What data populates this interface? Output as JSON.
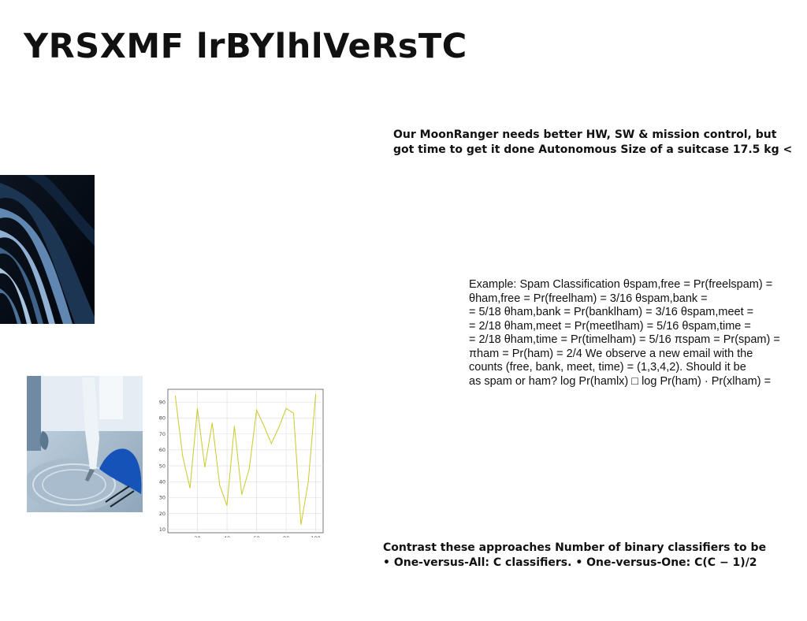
{
  "slide": {
    "title": "YRSXMF lrBYlhlVeRsTC",
    "para1": [
      "Our MoonRanger needs better HW, SW & mission control, but",
      "got time to get it done Autonomous Size of a suitcase 17.5 kg <"
    ],
    "para2": [
      "Example: Spam Classification θspam,free = Pr(freelspam) =",
      "θham,free = Pr(freelham) = 3/16 θspam,bank =",
      "= 5/18 θham,bank = Pr(banklham) = 3/16 θspam,meet =",
      "= 2/18 θham,meet = Pr(meetlham) = 5/16 θspam,time =",
      "= 2/18 θham,time = Pr(timelham) = 5/16 πspam = Pr(spam) =",
      "πham = Pr(ham) = 2/4 We observe a new email with the",
      "counts (free, bank, meet, time) = (1,3,4,2). Should it be",
      "as spam or ham? log Pr(hamlx) □ log Pr(ham) · Pr(xlham) ="
    ],
    "para3": [
      "Contrast these approaches Number of binary classifiers to be",
      "• One-versus-All: C classifiers. • One-versus-One: C(C − 1)/2"
    ]
  },
  "chart_data": {
    "type": "line",
    "x": [
      5,
      10,
      15,
      20,
      25,
      30,
      35,
      40,
      45,
      50,
      55,
      60,
      65,
      70,
      75,
      80,
      85,
      90,
      95,
      100
    ],
    "series": [
      {
        "values": [
          94,
          56,
          36,
          86,
          49,
          77,
          38,
          25,
          75,
          32,
          48,
          85,
          75,
          64,
          74,
          86,
          83,
          13,
          40,
          95
        ],
        "color": "#c9c92a"
      }
    ],
    "xticks": [
      20,
      40,
      60,
      80,
      100
    ],
    "yticks": [
      10,
      20,
      30,
      40,
      50,
      60,
      70,
      80,
      90
    ],
    "xlim": [
      0,
      105
    ],
    "ylim": [
      8,
      98
    ],
    "grid": true
  }
}
